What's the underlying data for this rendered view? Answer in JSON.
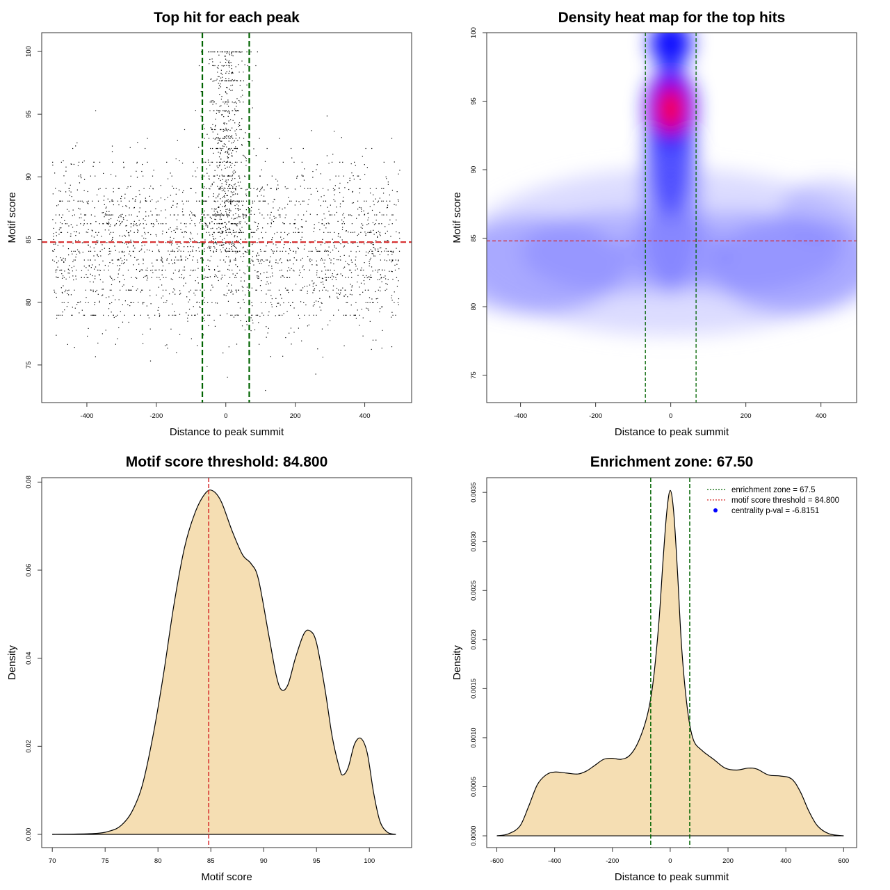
{
  "colors": {
    "threshold": "#d62728",
    "zone": "#006400",
    "fill": "#f5deb3",
    "heat_low": "#ffffff",
    "heat_mid": "#8080ff",
    "heat_high": "#0000ff",
    "heat_peak": "#ff0000"
  },
  "chart_data": [
    {
      "id": "scatter",
      "type": "scatter",
      "title": "Top hit for each peak",
      "xlabel": "Distance to peak summit",
      "ylabel": "Motif score",
      "xlim": [
        -530,
        535
      ],
      "ylim": [
        72,
        101.5
      ],
      "xticks": [
        -400,
        -200,
        0,
        200,
        400
      ],
      "yticks": [
        75,
        80,
        85,
        90,
        95,
        100
      ],
      "vlines": [
        -67.5,
        67.5
      ],
      "hline": 84.8,
      "points_description": "approx. 3000 top hits spread over -500..500 bp with motif scores 73..100, concentrated near the summit"
    },
    {
      "id": "heatmap",
      "type": "heatmap",
      "title": "Density heat map for the top hits",
      "xlabel": "Distance to peak summit",
      "ylabel": "Motif score",
      "xlim": [
        -490,
        495
      ],
      "ylim": [
        73,
        100
      ],
      "xticks": [
        -400,
        -200,
        0,
        200,
        400
      ],
      "yticks": [
        75,
        80,
        85,
        90,
        95,
        100
      ],
      "vlines": [
        -67.5,
        67.5
      ],
      "hline": 84.8,
      "hotspots": [
        {
          "x": 0,
          "y": 94.5,
          "level": "peak"
        },
        {
          "x": 0,
          "y": 99.2,
          "level": "high"
        },
        {
          "x": 0,
          "y": 87,
          "level": "mid"
        },
        {
          "x": -350,
          "y": 83,
          "level": "mid"
        },
        {
          "x": 300,
          "y": 82.5,
          "level": "mid"
        }
      ]
    },
    {
      "id": "score_density",
      "type": "area",
      "title": "Motif score threshold: 84.800",
      "xlabel": "Motif score",
      "ylabel": "Density",
      "xlim": [
        69,
        104
      ],
      "ylim": [
        -0.003,
        0.081
      ],
      "xticks": [
        70,
        75,
        80,
        85,
        90,
        95,
        100
      ],
      "yticks": [
        0.0,
        0.02,
        0.04,
        0.06,
        0.08
      ],
      "ytick_labels": [
        "0.00",
        "0.02",
        "0.04",
        "0.06",
        "0.08"
      ],
      "vline": 84.8,
      "x": [
        70,
        74,
        75.5,
        76.5,
        77.5,
        78.5,
        79.5,
        80.5,
        81.5,
        82.5,
        83.5,
        84.5,
        85.2,
        86,
        87,
        88,
        88.8,
        89.5,
        90.5,
        91.2,
        91.7,
        92.3,
        93,
        93.8,
        94.4,
        95,
        95.8,
        96.5,
        97.2,
        97.5,
        98,
        98.6,
        99.2,
        99.8,
        100.4,
        101,
        101.7,
        102.5
      ],
      "y": [
        0,
        0.0002,
        0.0008,
        0.002,
        0.005,
        0.011,
        0.022,
        0.036,
        0.052,
        0.065,
        0.073,
        0.0775,
        0.078,
        0.0755,
        0.069,
        0.0635,
        0.0615,
        0.058,
        0.045,
        0.036,
        0.0328,
        0.034,
        0.04,
        0.0455,
        0.0462,
        0.0435,
        0.033,
        0.022,
        0.0148,
        0.0135,
        0.0152,
        0.0205,
        0.0218,
        0.0185,
        0.0095,
        0.003,
        0.0005,
        0
      ]
    },
    {
      "id": "distance_density",
      "type": "area",
      "title": "Enrichment zone: 67.50",
      "xlabel": "Distance to peak summit",
      "ylabel": "Density",
      "xlim": [
        -635,
        645
      ],
      "ylim": [
        -0.00012,
        0.00365
      ],
      "xticks": [
        -600,
        -400,
        -200,
        0,
        200,
        400,
        600
      ],
      "yticks": [
        0,
        0.0005,
        0.001,
        0.0015,
        0.002,
        0.0025,
        0.003,
        0.0035
      ],
      "ytick_labels": [
        "0.0000",
        "0.0005",
        "0.0010",
        "0.0015",
        "0.0020",
        "0.0025",
        "0.0030",
        "0.0035"
      ],
      "vlines": [
        -67.5,
        67.5
      ],
      "x": [
        -600,
        -560,
        -520,
        -490,
        -460,
        -430,
        -400,
        -360,
        -320,
        -290,
        -260,
        -230,
        -200,
        -170,
        -140,
        -110,
        -80,
        -60,
        -40,
        -25,
        -12,
        0,
        12,
        25,
        40,
        60,
        80,
        110,
        150,
        190,
        230,
        270,
        300,
        340,
        380,
        420,
        450,
        480,
        510,
        550,
        600
      ],
      "y": [
        0,
        2e-05,
        0.0001,
        0.0003,
        0.00052,
        0.00062,
        0.00065,
        0.00064,
        0.00063,
        0.00066,
        0.00072,
        0.00078,
        0.00079,
        0.00078,
        0.00082,
        0.00096,
        0.00122,
        0.00155,
        0.00215,
        0.0028,
        0.0033,
        0.00352,
        0.0033,
        0.0027,
        0.0019,
        0.00128,
        0.00098,
        0.00087,
        0.00078,
        0.00069,
        0.00067,
        0.00069,
        0.00068,
        0.00062,
        0.00061,
        0.00058,
        0.00045,
        0.00025,
        0.0001,
        2e-05,
        0
      ]
    }
  ],
  "legend": [
    {
      "label": "enrichment zone = 67.5",
      "style": "dotted-green"
    },
    {
      "label": "motif score threshold = 84.800",
      "style": "dotted-red"
    },
    {
      "label": "centrality p-val = -6.8151",
      "style": "blue-dot"
    }
  ]
}
